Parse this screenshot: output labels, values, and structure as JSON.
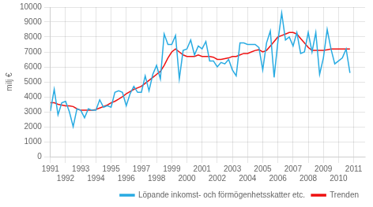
{
  "chart_data": {
    "type": "line",
    "ylabel": "milj €",
    "x": [
      1991,
      1991.25,
      1991.5,
      1991.75,
      1992,
      1992.25,
      1992.5,
      1992.75,
      1993,
      1993.25,
      1993.5,
      1993.75,
      1994,
      1994.25,
      1994.5,
      1994.75,
      1995,
      1995.25,
      1995.5,
      1995.75,
      1996,
      1996.25,
      1996.5,
      1996.75,
      1997,
      1997.25,
      1997.5,
      1997.75,
      1998,
      1998.25,
      1998.5,
      1998.75,
      1999,
      1999.25,
      1999.5,
      1999.75,
      2000,
      2000.25,
      2000.5,
      2000.75,
      2001,
      2001.25,
      2001.5,
      2001.75,
      2002,
      2002.25,
      2002.5,
      2002.75,
      2003,
      2003.25,
      2003.5,
      2003.75,
      2004,
      2004.25,
      2004.5,
      2004.75,
      2005,
      2005.25,
      2005.5,
      2005.75,
      2006,
      2006.25,
      2006.5,
      2006.75,
      2007,
      2007.25,
      2007.5,
      2007.75,
      2008,
      2008.25,
      2008.5,
      2008.75,
      2009,
      2009.25,
      2009.5,
      2009.75,
      2010,
      2010.25,
      2010.5,
      2010.75
    ],
    "series": [
      {
        "name": "Löpande inkomst- och förmögenhetsskatter etc.",
        "color": "#29ABE2",
        "values": [
          3050,
          4500,
          2800,
          3600,
          3700,
          3000,
          2000,
          3200,
          3100,
          2600,
          3200,
          3100,
          3100,
          3800,
          3300,
          3400,
          3300,
          4300,
          4400,
          4300,
          3400,
          4200,
          4700,
          4300,
          4300,
          5400,
          4400,
          5500,
          6100,
          5200,
          8200,
          7500,
          7500,
          8100,
          5200,
          7100,
          7200,
          7800,
          6800,
          7400,
          7200,
          7700,
          6400,
          6400,
          6000,
          6300,
          6200,
          6500,
          5800,
          5400,
          7600,
          7600,
          7500,
          7500,
          7500,
          7300,
          5800,
          7600,
          8400,
          5300,
          7700,
          9600,
          7800,
          8000,
          7400,
          8300,
          6900,
          7000,
          8300,
          7000,
          8300,
          5500,
          6600,
          8500,
          7200,
          6200,
          6400,
          6600,
          7200,
          5600
        ]
      },
      {
        "name": "Trenden",
        "color": "#EE1111",
        "values": [
          3600,
          3600,
          3500,
          3450,
          3400,
          3400,
          3350,
          3200,
          3100,
          3100,
          3100,
          3100,
          3150,
          3250,
          3350,
          3450,
          3600,
          3700,
          3850,
          4000,
          4200,
          4350,
          4500,
          4600,
          4700,
          4900,
          5100,
          5300,
          5500,
          5700,
          6100,
          6600,
          7000,
          7200,
          7000,
          6800,
          6700,
          6700,
          6700,
          6800,
          6700,
          6700,
          6700,
          6650,
          6500,
          6500,
          6550,
          6600,
          6700,
          6700,
          6800,
          6900,
          6900,
          7000,
          7100,
          7150,
          7000,
          7100,
          7400,
          7700,
          8000,
          8100,
          8200,
          8300,
          8300,
          8200,
          7900,
          7600,
          7300,
          7100,
          7100,
          7100,
          7100,
          7150,
          7200,
          7200,
          7200,
          7200,
          7200,
          7200
        ]
      }
    ],
    "xlim": [
      1991,
      2011.75
    ],
    "xticks": [
      1991,
      1992,
      1993,
      1994,
      1995,
      1996,
      1997,
      1998,
      1999,
      2000,
      2001,
      2002,
      2003,
      2004,
      2005,
      2006,
      2007,
      2008,
      2009,
      2010,
      2011
    ],
    "ylim": [
      0,
      10000
    ],
    "yticks": [
      0,
      1000,
      2000,
      3000,
      4000,
      5000,
      6000,
      7000,
      8000,
      9000,
      10000
    ],
    "grid": true,
    "legend": "lower right"
  }
}
